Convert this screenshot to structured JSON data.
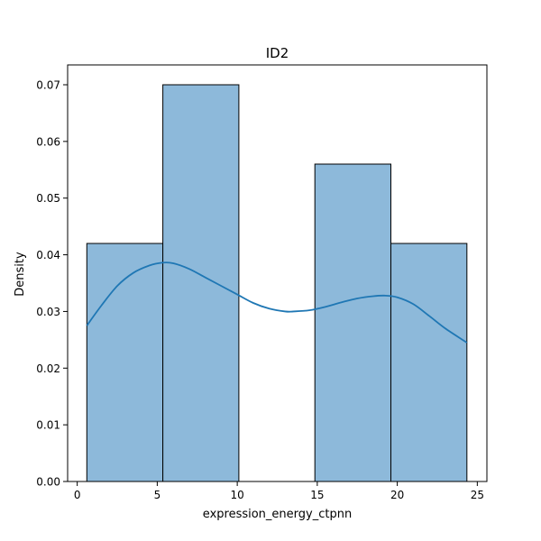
{
  "chart_data": {
    "type": "bar",
    "title": "ID2",
    "xlabel": "expression_energy_ctpnn",
    "ylabel": "Density",
    "xlim": [
      -0.6,
      25.6
    ],
    "ylim": [
      0,
      0.0735
    ],
    "xticks": [
      0,
      5,
      10,
      15,
      20,
      25
    ],
    "yticks": [
      0.0,
      0.01,
      0.02,
      0.03,
      0.04,
      0.05,
      0.06,
      0.07
    ],
    "ytick_labels": [
      "0.00",
      "0.01",
      "0.02",
      "0.03",
      "0.04",
      "0.05",
      "0.06",
      "0.07"
    ],
    "bins": [
      {
        "x0": 0.6,
        "x1": 5.35,
        "density": 0.042
      },
      {
        "x0": 5.35,
        "x1": 10.1,
        "density": 0.07
      },
      {
        "x0": 10.1,
        "x1": 14.85,
        "density": 0.0
      },
      {
        "x0": 14.85,
        "x1": 19.6,
        "density": 0.056
      },
      {
        "x0": 19.6,
        "x1": 24.35,
        "density": 0.042
      }
    ],
    "kde": {
      "x": [
        0.6,
        1.5,
        2.5,
        3.5,
        4.5,
        5.3,
        6.0,
        7.0,
        8.0,
        9.0,
        10.0,
        11.0,
        12.0,
        13.0,
        13.5,
        14.5,
        15.5,
        16.5,
        17.5,
        18.5,
        19.2,
        20.0,
        21.0,
        22.0,
        23.0,
        24.35
      ],
      "y": [
        0.0275,
        0.031,
        0.0345,
        0.0368,
        0.0381,
        0.0386,
        0.0385,
        0.0375,
        0.036,
        0.0345,
        0.033,
        0.0315,
        0.0305,
        0.03,
        0.03,
        0.0302,
        0.0308,
        0.0316,
        0.0323,
        0.0327,
        0.0328,
        0.0325,
        0.0313,
        0.0292,
        0.027,
        0.0245
      ]
    },
    "colors": {
      "bar_fill": "#8db9da",
      "bar_edge": "#000000",
      "kde_line": "#1f77b4"
    },
    "grid": false,
    "legend": "none"
  }
}
